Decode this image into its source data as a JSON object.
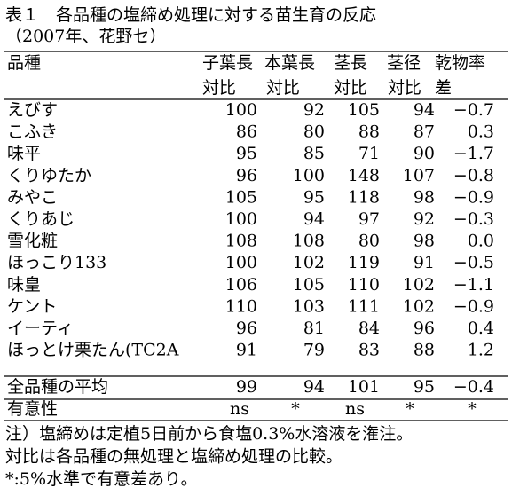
{
  "title": "表１　各品種の塩締め処理に対する苗生育の反応",
  "subtitle": "（2007年、花野セ）",
  "table": {
    "name_header": "品種",
    "value_headers": [
      [
        "子葉長",
        "対比"
      ],
      [
        "本葉長",
        "対比"
      ],
      [
        "茎長",
        "対比"
      ],
      [
        "茎径",
        "対比"
      ],
      [
        "乾物率",
        "差"
      ]
    ],
    "rows": [
      [
        "えびす",
        "100",
        "92",
        "105",
        "94",
        "−0.7"
      ],
      [
        "こふき",
        "86",
        "80",
        "88",
        "87",
        "0.3"
      ],
      [
        "味平",
        "95",
        "85",
        "71",
        "90",
        "−1.7"
      ],
      [
        "くりゆたか",
        "96",
        "100",
        "148",
        "107",
        "−0.8"
      ],
      [
        "みやこ",
        "105",
        "95",
        "118",
        "98",
        "−0.9"
      ],
      [
        "くりあじ",
        "100",
        "94",
        "97",
        "92",
        "−0.3"
      ],
      [
        "雪化粧",
        "108",
        "108",
        "80",
        "98",
        "0.0"
      ],
      [
        "ほっこり133",
        "100",
        "102",
        "119",
        "91",
        "−0.5"
      ],
      [
        "味皇",
        "106",
        "105",
        "110",
        "102",
        "−1.1"
      ],
      [
        "ケント",
        "110",
        "103",
        "111",
        "102",
        "−0.9"
      ],
      [
        "イーティ",
        "96",
        "81",
        "84",
        "96",
        "0.4"
      ],
      [
        "ほっとけ栗たん(TC2A",
        "91",
        "79",
        "83",
        "88",
        "1.2"
      ]
    ],
    "average": [
      "全品種の平均",
      "99",
      "94",
      "101",
      "95",
      "−0.4"
    ],
    "significance": [
      "有意性",
      "ns",
      "*",
      "ns",
      "*",
      "*"
    ]
  },
  "notes": [
    "注）塩締めは定植5日前から食塩0.3%水溶液を潅注。",
    "対比は各品種の無処理と塩締め処理の比較。",
    "*:5%水準で有意差あり。"
  ]
}
